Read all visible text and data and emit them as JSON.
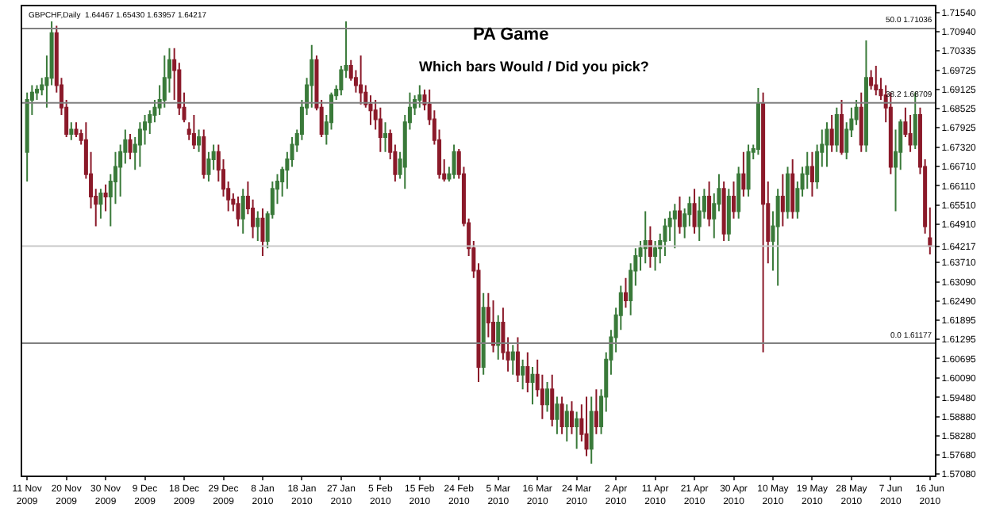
{
  "chart_data": {
    "type": "candlestick",
    "title": "PA Game",
    "subtitle": "Which bars Would / Did you pick?",
    "annotations": [
      "GBPCHF,Daily  1.64467 1.65430 1.63957 1.64217"
    ],
    "categories": [
      "11 Nov 2009",
      null,
      null,
      null,
      null,
      null,
      null,
      null,
      "20 Nov 2009",
      null,
      null,
      null,
      null,
      null,
      null,
      null,
      "30 Nov 2009",
      null,
      null,
      null,
      null,
      null,
      null,
      null,
      "9 Dec 2009",
      null,
      null,
      null,
      null,
      null,
      null,
      null,
      "18 Dec 2009",
      null,
      null,
      null,
      null,
      null,
      null,
      null,
      "29 Dec 2009",
      null,
      null,
      null,
      null,
      null,
      null,
      null,
      "8 Jan 2010",
      null,
      null,
      null,
      null,
      null,
      null,
      null,
      "18 Jan 2010",
      null,
      null,
      null,
      null,
      null,
      null,
      null,
      "27 Jan 2010",
      null,
      null,
      null,
      null,
      null,
      null,
      null,
      "5 Feb 2010",
      null,
      null,
      null,
      null,
      null,
      null,
      null,
      "15 Feb 2010",
      null,
      null,
      null,
      null,
      null,
      null,
      null,
      "24 Feb 2010",
      null,
      null,
      null,
      null,
      null,
      null,
      null,
      "5 Mar 2010",
      null,
      null,
      null,
      null,
      null,
      null,
      null,
      "16 Mar 2010",
      null,
      null,
      null,
      null,
      null,
      null,
      null,
      "24 Mar 2010",
      null,
      null,
      null,
      null,
      null,
      null,
      null,
      "2 Apr 2010",
      null,
      null,
      null,
      null,
      null,
      null,
      null,
      "11 Apr 2010",
      null,
      null,
      null,
      null,
      null,
      null,
      null,
      "21 Apr 2010",
      null,
      null,
      null,
      null,
      null,
      null,
      null,
      "30 Apr 2010",
      null,
      null,
      null,
      null,
      null,
      null,
      null,
      "10 May 2010",
      null,
      null,
      null,
      null,
      null,
      null,
      null,
      "19 May 2010",
      null,
      null,
      null,
      null,
      null,
      null,
      null,
      "28 May 2010",
      null,
      null,
      null,
      null,
      null,
      null,
      null,
      "7 Jun 2010",
      null,
      null,
      null,
      null,
      null,
      null,
      null,
      "16 Jun 2010"
    ],
    "ohlc": [
      [
        1.6717,
        1.6903,
        1.6624,
        1.688
      ],
      [
        1.688,
        1.6926,
        1.6833,
        1.6903
      ],
      [
        1.6903,
        1.6926,
        1.688,
        1.6912
      ],
      [
        1.6912,
        1.6949,
        1.6894,
        1.6926
      ],
      [
        1.6926,
        1.7019,
        1.6856,
        1.6949
      ],
      [
        1.6949,
        1.7126,
        1.6926,
        1.7089
      ],
      [
        1.7089,
        1.7112,
        1.6903,
        1.6926
      ],
      [
        1.6926,
        1.6949,
        1.6833,
        1.6856
      ],
      [
        1.6856,
        1.688,
        1.6763,
        1.6773
      ],
      [
        1.6773,
        1.681,
        1.6754,
        1.6787
      ],
      [
        1.6787,
        1.681,
        1.6763,
        1.6773
      ],
      [
        1.6773,
        1.6787,
        1.674,
        1.6754
      ],
      [
        1.6754,
        1.681,
        1.6633,
        1.6647
      ],
      [
        1.6647,
        1.6717,
        1.654,
        1.6577
      ],
      [
        1.6577,
        1.6601,
        1.6484,
        1.6554
      ],
      [
        1.6554,
        1.6601,
        1.6508,
        1.6587
      ],
      [
        1.6587,
        1.6615,
        1.6531,
        1.6577
      ],
      [
        1.6577,
        1.6647,
        1.6484,
        1.6624
      ],
      [
        1.6624,
        1.6717,
        1.6554,
        1.667
      ],
      [
        1.667,
        1.674,
        1.6577,
        1.6717
      ],
      [
        1.6717,
        1.6787,
        1.668,
        1.6754
      ],
      [
        1.6754,
        1.6773,
        1.6694,
        1.6717
      ],
      [
        1.6717,
        1.6763,
        1.6661,
        1.674
      ],
      [
        1.674,
        1.681,
        1.667,
        1.6787
      ],
      [
        1.6787,
        1.6833,
        1.674,
        1.681
      ],
      [
        1.681,
        1.6847,
        1.6773,
        1.6833
      ],
      [
        1.6833,
        1.688,
        1.681,
        1.6856
      ],
      [
        1.6856,
        1.6926,
        1.6833,
        1.688
      ],
      [
        1.688,
        1.7019,
        1.6856,
        1.6949
      ],
      [
        1.6949,
        1.7042,
        1.6903,
        1.7005
      ],
      [
        1.7005,
        1.7042,
        1.688,
        1.6973
      ],
      [
        1.6973,
        1.6996,
        1.6833,
        1.6856
      ],
      [
        1.6856,
        1.6903,
        1.681,
        1.6819
      ],
      [
        1.6787,
        1.681,
        1.6754,
        1.6773
      ],
      [
        1.6773,
        1.6833,
        1.6726,
        1.674
      ],
      [
        1.674,
        1.6787,
        1.6717,
        1.6763
      ],
      [
        1.6763,
        1.6787,
        1.6633,
        1.6647
      ],
      [
        1.6647,
        1.6717,
        1.6624,
        1.6694
      ],
      [
        1.6694,
        1.674,
        1.6661,
        1.6717
      ],
      [
        1.6717,
        1.674,
        1.6624,
        1.6661
      ],
      [
        1.6661,
        1.6694,
        1.6577,
        1.6601
      ],
      [
        1.6601,
        1.6624,
        1.6531,
        1.6568
      ],
      [
        1.6568,
        1.6587,
        1.6531,
        1.6554
      ],
      [
        1.6554,
        1.6577,
        1.6484,
        1.6508
      ],
      [
        1.6508,
        1.6601,
        1.6461,
        1.6577
      ],
      [
        1.6577,
        1.6624,
        1.6522,
        1.654
      ],
      [
        1.654,
        1.6568,
        1.6447,
        1.6484
      ],
      [
        1.6484,
        1.6531,
        1.6438,
        1.6508
      ],
      [
        1.6508,
        1.654,
        1.6391,
        1.6438
      ],
      [
        1.6438,
        1.6531,
        1.6415,
        1.6522
      ],
      [
        1.6522,
        1.6624,
        1.6508,
        1.6601
      ],
      [
        1.6601,
        1.6647,
        1.6554,
        1.6624
      ],
      [
        1.6624,
        1.667,
        1.6577,
        1.6661
      ],
      [
        1.6661,
        1.6717,
        1.6601,
        1.6694
      ],
      [
        1.6694,
        1.6763,
        1.667,
        1.674
      ],
      [
        1.674,
        1.6787,
        1.6717,
        1.6773
      ],
      [
        1.6773,
        1.688,
        1.6754,
        1.6856
      ],
      [
        1.6856,
        1.6949,
        1.6833,
        1.6926
      ],
      [
        1.6926,
        1.7052,
        1.6856,
        1.7005
      ],
      [
        1.7005,
        1.7019,
        1.6847,
        1.6856
      ],
      [
        1.6856,
        1.688,
        1.6763,
        1.6773
      ],
      [
        1.6773,
        1.6833,
        1.674,
        1.681
      ],
      [
        1.681,
        1.6903,
        1.6787,
        1.6894
      ],
      [
        1.6894,
        1.6926,
        1.688,
        1.6912
      ],
      [
        1.6912,
        1.6987,
        1.6894,
        1.6973
      ],
      [
        1.6973,
        1.7126,
        1.6949,
        1.6987
      ],
      [
        1.6987,
        1.7005,
        1.694,
        1.6949
      ],
      [
        1.6949,
        1.6973,
        1.6903,
        1.6926
      ],
      [
        1.6926,
        1.7019,
        1.6866,
        1.6903
      ],
      [
        1.6903,
        1.6926,
        1.6856,
        1.6866
      ],
      [
        1.6866,
        1.6894,
        1.6801,
        1.6847
      ],
      [
        1.6847,
        1.688,
        1.6787,
        1.6819
      ],
      [
        1.6819,
        1.6856,
        1.6717,
        1.6763
      ],
      [
        1.6763,
        1.681,
        1.6717,
        1.6773
      ],
      [
        1.6773,
        1.6787,
        1.6694,
        1.6717
      ],
      [
        1.6717,
        1.674,
        1.6624,
        1.6647
      ],
      [
        1.6647,
        1.6717,
        1.6633,
        1.6694
      ],
      [
        1.667,
        1.6833,
        1.6601,
        1.681
      ],
      [
        1.681,
        1.6903,
        1.6787,
        1.6856
      ],
      [
        1.6856,
        1.6894,
        1.6833,
        1.688
      ],
      [
        1.688,
        1.6926,
        1.6856,
        1.6894
      ],
      [
        1.6894,
        1.6912,
        1.6847,
        1.6866
      ],
      [
        1.6866,
        1.6912,
        1.6801,
        1.6819
      ],
      [
        1.6819,
        1.6847,
        1.674,
        1.6754
      ],
      [
        1.6754,
        1.6787,
        1.6633,
        1.6647
      ],
      [
        1.6647,
        1.6694,
        1.6624,
        1.6633
      ],
      [
        1.6633,
        1.667,
        1.6624,
        1.6647
      ],
      [
        1.6647,
        1.674,
        1.6633,
        1.6717
      ],
      [
        1.6717,
        1.6726,
        1.6633,
        1.6647
      ],
      [
        1.6647,
        1.667,
        1.6484,
        1.6494
      ],
      [
        1.6494,
        1.6508,
        1.6391,
        1.6415
      ],
      [
        1.6415,
        1.6438,
        1.6322,
        1.6345
      ],
      [
        1.6345,
        1.6368,
        1.5996,
        1.6043
      ],
      [
        1.6043,
        1.6275,
        1.6019,
        1.6229
      ],
      [
        1.6229,
        1.6275,
        1.6136,
        1.6182
      ],
      [
        1.6182,
        1.6252,
        1.6089,
        1.6112
      ],
      [
        1.6112,
        1.6205,
        1.6066,
        1.6182
      ],
      [
        1.6182,
        1.6229,
        1.6066,
        1.6089
      ],
      [
        1.6089,
        1.6136,
        1.6029,
        1.6066
      ],
      [
        1.6066,
        1.6112,
        1.6019,
        1.6089
      ],
      [
        1.6089,
        1.6136,
        1.5996,
        1.6019
      ],
      [
        1.6019,
        1.6066,
        1.5973,
        1.6043
      ],
      [
        1.6043,
        1.6089,
        1.5964,
        1.5996
      ],
      [
        1.5996,
        1.6043,
        1.5926,
        1.6019
      ],
      [
        1.6019,
        1.6066,
        1.595,
        1.5973
      ],
      [
        1.5973,
        1.6019,
        1.588,
        1.5926
      ],
      [
        1.5926,
        1.5996,
        1.5903,
        1.5973
      ],
      [
        1.5973,
        1.6019,
        1.5857,
        1.588
      ],
      [
        1.588,
        1.595,
        1.5833,
        1.5926
      ],
      [
        1.5926,
        1.595,
        1.5833,
        1.5857
      ],
      [
        1.5857,
        1.5926,
        1.581,
        1.5903
      ],
      [
        1.5903,
        1.5936,
        1.5833,
        1.5857
      ],
      [
        1.5857,
        1.5903,
        1.5787,
        1.588
      ],
      [
        1.588,
        1.5926,
        1.581,
        1.5833
      ],
      [
        1.5833,
        1.595,
        1.5764,
        1.5787
      ],
      [
        1.5787,
        1.595,
        1.574,
        1.5903
      ],
      [
        1.5903,
        1.5973,
        1.5833,
        1.5857
      ],
      [
        1.5857,
        1.5973,
        1.5833,
        1.595
      ],
      [
        1.595,
        1.6089,
        1.5903,
        1.6066
      ],
      [
        1.6066,
        1.6159,
        1.6019,
        1.6136
      ],
      [
        1.6136,
        1.6229,
        1.6089,
        1.6205
      ],
      [
        1.6205,
        1.6298,
        1.6159,
        1.6275
      ],
      [
        1.6275,
        1.6322,
        1.6229,
        1.6252
      ],
      [
        1.6252,
        1.6368,
        1.6205,
        1.6345
      ],
      [
        1.6345,
        1.6415,
        1.6298,
        1.6391
      ],
      [
        1.6391,
        1.6438,
        1.6345,
        1.6415
      ],
      [
        1.6415,
        1.6531,
        1.6368,
        1.6438
      ],
      [
        1.6438,
        1.6484,
        1.6354,
        1.6391
      ],
      [
        1.6391,
        1.6438,
        1.6345,
        1.6415
      ],
      [
        1.6415,
        1.6461,
        1.6368,
        1.6438
      ],
      [
        1.6438,
        1.6508,
        1.6391,
        1.6484
      ],
      [
        1.6484,
        1.6531,
        1.6438,
        1.6508
      ],
      [
        1.6508,
        1.6554,
        1.6415,
        1.6531
      ],
      [
        1.6531,
        1.6577,
        1.6461,
        1.6484
      ],
      [
        1.6484,
        1.654,
        1.6447,
        1.6522
      ],
      [
        1.6522,
        1.6577,
        1.6484,
        1.6554
      ],
      [
        1.6554,
        1.6601,
        1.6461,
        1.6484
      ],
      [
        1.6484,
        1.6577,
        1.6438,
        1.6531
      ],
      [
        1.6531,
        1.6601,
        1.6508,
        1.6577
      ],
      [
        1.6577,
        1.6624,
        1.6484,
        1.6508
      ],
      [
        1.6508,
        1.6587,
        1.6447,
        1.6554
      ],
      [
        1.6554,
        1.6647,
        1.6531,
        1.6601
      ],
      [
        1.6601,
        1.6624,
        1.6438,
        1.6461
      ],
      [
        1.6461,
        1.6601,
        1.6438,
        1.6577
      ],
      [
        1.6577,
        1.6624,
        1.6508,
        1.6531
      ],
      [
        1.6531,
        1.667,
        1.6508,
        1.6647
      ],
      [
        1.6647,
        1.6717,
        1.6577,
        1.6601
      ],
      [
        1.6601,
        1.674,
        1.6577,
        1.6717
      ],
      [
        1.6717,
        1.674,
        1.6694,
        1.6726
      ],
      [
        1.6726,
        1.6917,
        1.6708,
        1.687
      ],
      [
        1.687,
        1.6903,
        1.6089,
        1.6554
      ],
      [
        1.6554,
        1.6624,
        1.6368,
        1.6438
      ],
      [
        1.6438,
        1.6531,
        1.6345,
        1.6484
      ],
      [
        1.6484,
        1.6601,
        1.6298,
        1.6577
      ],
      [
        1.6577,
        1.6647,
        1.6484,
        1.6531
      ],
      [
        1.6531,
        1.667,
        1.6508,
        1.6647
      ],
      [
        1.6647,
        1.6694,
        1.6508,
        1.6531
      ],
      [
        1.6531,
        1.6624,
        1.6508,
        1.6601
      ],
      [
        1.6601,
        1.667,
        1.6577,
        1.6647
      ],
      [
        1.6647,
        1.6717,
        1.6601,
        1.667
      ],
      [
        1.667,
        1.6717,
        1.6577,
        1.6624
      ],
      [
        1.6624,
        1.674,
        1.6601,
        1.6717
      ],
      [
        1.6717,
        1.6787,
        1.667,
        1.674
      ],
      [
        1.674,
        1.681,
        1.667,
        1.6787
      ],
      [
        1.6787,
        1.6833,
        1.6717,
        1.674
      ],
      [
        1.674,
        1.6856,
        1.6717,
        1.6833
      ],
      [
        1.6833,
        1.688,
        1.6708,
        1.6717
      ],
      [
        1.6717,
        1.681,
        1.6694,
        1.6787
      ],
      [
        1.6787,
        1.6856,
        1.6763,
        1.6819
      ],
      [
        1.6819,
        1.688,
        1.6801,
        1.6856
      ],
      [
        1.6856,
        1.6903,
        1.6717,
        1.674
      ],
      [
        1.674,
        1.7066,
        1.6717,
        1.6949
      ],
      [
        1.6949,
        1.6973,
        1.6912,
        1.6926
      ],
      [
        1.6926,
        1.6987,
        1.6894,
        1.6912
      ],
      [
        1.6912,
        1.6949,
        1.688,
        1.6894
      ],
      [
        1.6894,
        1.6926,
        1.681,
        1.6856
      ],
      [
        1.6856,
        1.6903,
        1.6647,
        1.667
      ],
      [
        1.667,
        1.6787,
        1.6531,
        1.6717
      ],
      [
        1.6717,
        1.6819,
        1.6661,
        1.681
      ],
      [
        1.681,
        1.6856,
        1.6763,
        1.6773
      ],
      [
        1.6773,
        1.6833,
        1.6717,
        1.674
      ],
      [
        1.674,
        1.6903,
        1.6726,
        1.6833
      ],
      [
        1.6833,
        1.6856,
        1.6647,
        1.667
      ],
      [
        1.667,
        1.6694,
        1.6461,
        1.6484
      ],
      [
        1.6447,
        1.6543,
        1.6396,
        1.6422
      ]
    ],
    "ylim": [
      1.5703,
      1.7173
    ],
    "yticks": [
      {
        "value": 1.7154,
        "label": "1.71540"
      },
      {
        "value": 1.7094,
        "label": "1.70940"
      },
      {
        "value": 1.70335,
        "label": "1.70335"
      },
      {
        "value": 1.69725,
        "label": "1.69725"
      },
      {
        "value": 1.69125,
        "label": "1.69125"
      },
      {
        "value": 1.68525,
        "label": "1.68525"
      },
      {
        "value": 1.67925,
        "label": "1.67925"
      },
      {
        "value": 1.6732,
        "label": "1.67320"
      },
      {
        "value": 1.6671,
        "label": "1.66710"
      },
      {
        "value": 1.6611,
        "label": "1.66110"
      },
      {
        "value": 1.6551,
        "label": "1.65510"
      },
      {
        "value": 1.6491,
        "label": "1.64910"
      },
      {
        "value": 1.64217,
        "label": "1.64217"
      },
      {
        "value": 1.6371,
        "label": "1.63710"
      },
      {
        "value": 1.6309,
        "label": "1.63090"
      },
      {
        "value": 1.6249,
        "label": "1.62490"
      },
      {
        "value": 1.61895,
        "label": "1.61895"
      },
      {
        "value": 1.61295,
        "label": "1.61295"
      },
      {
        "value": 1.60695,
        "label": "1.60695"
      },
      {
        "value": 1.6009,
        "label": "1.60090"
      },
      {
        "value": 1.5948,
        "label": "1.59480"
      },
      {
        "value": 1.5888,
        "label": "1.58880"
      },
      {
        "value": 1.5828,
        "label": "1.58280"
      },
      {
        "value": 1.5768,
        "label": "1.57680"
      },
      {
        "value": 1.5708,
        "label": "1.57080"
      }
    ],
    "ref_lines": [
      {
        "axis": "y",
        "value": 1.71036,
        "label": "50.0 1.71036",
        "color": "#808080"
      },
      {
        "axis": "y",
        "value": 1.68709,
        "label": "38.2 1.68709",
        "color": "#808080"
      },
      {
        "axis": "y",
        "value": 1.61177,
        "label": "0.0 1.61177",
        "color": "#808080"
      },
      {
        "axis": "y",
        "value": 1.64217,
        "label": null,
        "color": "#c8c8c8"
      }
    ],
    "legend": false
  }
}
